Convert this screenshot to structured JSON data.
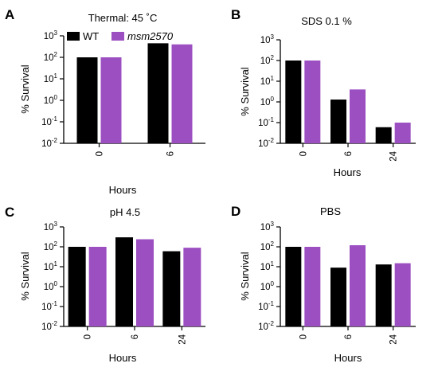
{
  "colors": {
    "wt": "#000000",
    "mutant": "#9b4fc1"
  },
  "legend": {
    "items": [
      {
        "label": "WT",
        "color": "#000000"
      },
      {
        "label": "msm2570",
        "color": "#9b4fc1",
        "italic": true
      }
    ]
  },
  "chart_data": [
    {
      "type": "bar",
      "panel": "A",
      "title": "Thermal: 45 ˚C",
      "xlabel": "Hours",
      "ylabel": "% Survival",
      "yscale": "log",
      "ylim": [
        0.01,
        1000
      ],
      "yticks_exponents": [
        "-2",
        "-1",
        "0",
        "1",
        "2",
        "3"
      ],
      "categories": [
        "0",
        "6"
      ],
      "series": [
        {
          "name": "WT",
          "values": [
            100,
            450
          ]
        },
        {
          "name": "msm2570",
          "values": [
            100,
            400
          ]
        }
      ]
    },
    {
      "type": "bar",
      "panel": "B",
      "title": "SDS 0.1 %",
      "xlabel": "Hours",
      "ylabel": "% Survival",
      "yscale": "log",
      "ylim": [
        0.01,
        1000
      ],
      "yticks_exponents": [
        "-2",
        "-1",
        "0",
        "1",
        "2",
        "3"
      ],
      "categories": [
        "0",
        "6",
        "24"
      ],
      "series": [
        {
          "name": "WT",
          "values": [
            100,
            1.3,
            0.06
          ]
        },
        {
          "name": "msm2570",
          "values": [
            100,
            4,
            0.1
          ]
        }
      ]
    },
    {
      "type": "bar",
      "panel": "C",
      "title": "pH 4.5",
      "xlabel": "Hours",
      "ylabel": "% Survival",
      "yscale": "log",
      "ylim": [
        0.01,
        1000
      ],
      "yticks_exponents": [
        "-2",
        "-1",
        "0",
        "1",
        "2",
        "3"
      ],
      "categories": [
        "0",
        "6",
        "24"
      ],
      "series": [
        {
          "name": "WT",
          "values": [
            100,
            300,
            60
          ]
        },
        {
          "name": "msm2570",
          "values": [
            100,
            240,
            90
          ]
        }
      ]
    },
    {
      "type": "bar",
      "panel": "D",
      "title": "PBS",
      "xlabel": "Hours",
      "ylabel": "% Survival",
      "yscale": "log",
      "ylim": [
        0.01,
        1000
      ],
      "yticks_exponents": [
        "-2",
        "-1",
        "0",
        "1",
        "2",
        "3"
      ],
      "categories": [
        "0",
        "6",
        "24"
      ],
      "series": [
        {
          "name": "WT",
          "values": [
            100,
            9,
            13
          ]
        },
        {
          "name": "msm2570",
          "values": [
            100,
            120,
            15
          ]
        }
      ]
    }
  ]
}
